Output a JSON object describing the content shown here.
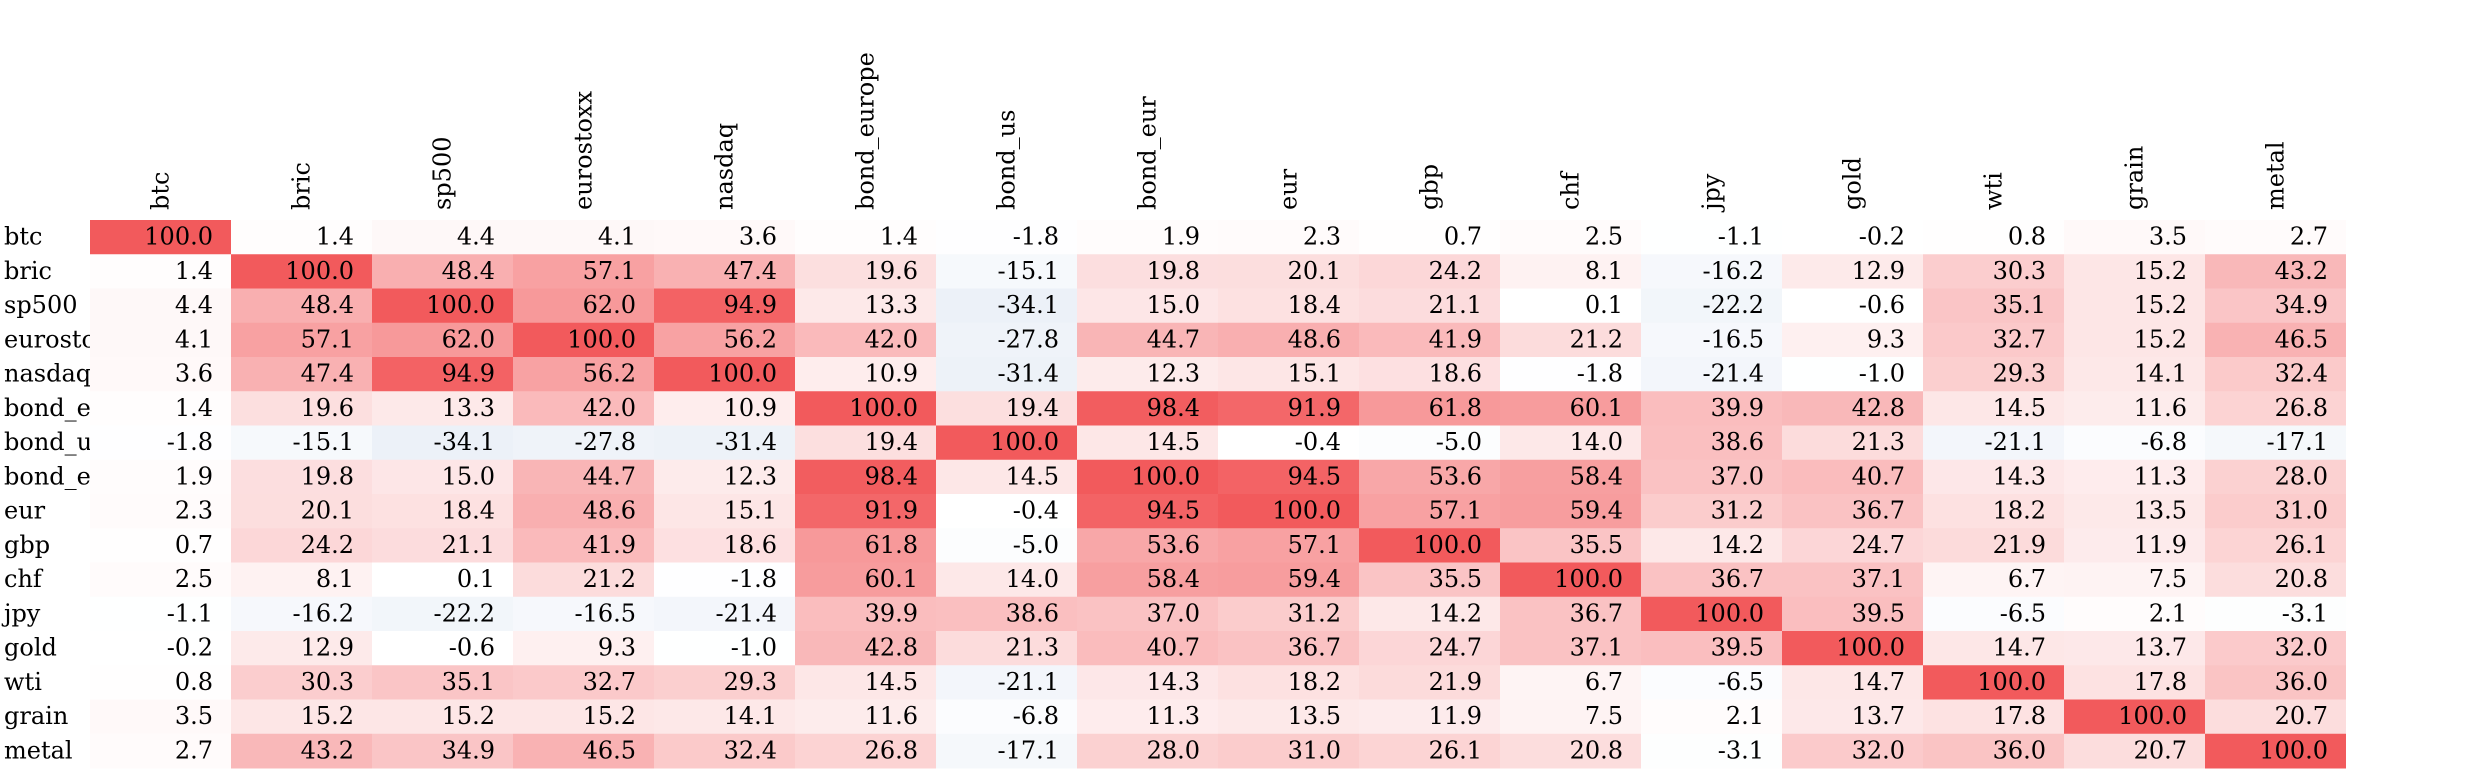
{
  "chart_data": {
    "type": "heatmap",
    "title": "",
    "xlabel": "",
    "ylabel": "",
    "labels": [
      "btc",
      "bric",
      "sp500",
      "eurostoxx",
      "nasdaq",
      "bond_europe",
      "bond_us",
      "bond_eur",
      "eur",
      "gbp",
      "chf",
      "jpy",
      "gold",
      "wti",
      "grain",
      "metal"
    ],
    "values": [
      [
        100.0,
        1.4,
        4.4,
        4.1,
        3.6,
        1.4,
        -1.8,
        1.9,
        2.3,
        0.7,
        2.5,
        -1.1,
        -0.2,
        0.8,
        3.5,
        2.7
      ],
      [
        1.4,
        100.0,
        48.4,
        57.1,
        47.4,
        19.6,
        -15.1,
        19.8,
        20.1,
        24.2,
        8.1,
        -16.2,
        12.9,
        30.3,
        15.2,
        43.2
      ],
      [
        4.4,
        48.4,
        100.0,
        62.0,
        94.9,
        13.3,
        -34.1,
        15.0,
        18.4,
        21.1,
        0.1,
        -22.2,
        -0.6,
        35.1,
        15.2,
        34.9
      ],
      [
        4.1,
        57.1,
        62.0,
        100.0,
        56.2,
        42.0,
        -27.8,
        44.7,
        48.6,
        41.9,
        21.2,
        -16.5,
        9.3,
        32.7,
        15.2,
        46.5
      ],
      [
        3.6,
        47.4,
        94.9,
        56.2,
        100.0,
        10.9,
        -31.4,
        12.3,
        15.1,
        18.6,
        -1.8,
        -21.4,
        -1.0,
        29.3,
        14.1,
        32.4
      ],
      [
        1.4,
        19.6,
        13.3,
        42.0,
        10.9,
        100.0,
        19.4,
        98.4,
        91.9,
        61.8,
        60.1,
        39.9,
        42.8,
        14.5,
        11.6,
        26.8
      ],
      [
        -1.8,
        -15.1,
        -34.1,
        -27.8,
        -31.4,
        19.4,
        100.0,
        14.5,
        -0.4,
        -5.0,
        14.0,
        38.6,
        21.3,
        -21.1,
        -6.8,
        -17.1
      ],
      [
        1.9,
        19.8,
        15.0,
        44.7,
        12.3,
        98.4,
        14.5,
        100.0,
        94.5,
        53.6,
        58.4,
        37.0,
        40.7,
        14.3,
        11.3,
        28.0
      ],
      [
        2.3,
        20.1,
        18.4,
        48.6,
        15.1,
        91.9,
        -0.4,
        94.5,
        100.0,
        57.1,
        59.4,
        31.2,
        36.7,
        18.2,
        13.5,
        31.0
      ],
      [
        0.7,
        24.2,
        21.1,
        41.9,
        18.6,
        61.8,
        -5.0,
        53.6,
        57.1,
        100.0,
        35.5,
        14.2,
        24.7,
        21.9,
        11.9,
        26.1
      ],
      [
        2.5,
        8.1,
        0.1,
        21.2,
        -1.8,
        60.1,
        14.0,
        58.4,
        59.4,
        35.5,
        100.0,
        36.7,
        37.1,
        6.7,
        7.5,
        20.8
      ],
      [
        -1.1,
        -16.2,
        -22.2,
        -16.5,
        -21.4,
        39.9,
        38.6,
        37.0,
        31.2,
        14.2,
        36.7,
        100.0,
        39.5,
        -6.5,
        2.1,
        -3.1
      ],
      [
        -0.2,
        12.9,
        -0.6,
        9.3,
        -1.0,
        42.8,
        21.3,
        40.7,
        36.7,
        24.7,
        37.1,
        39.5,
        100.0,
        14.7,
        13.7,
        32.0
      ],
      [
        0.8,
        30.3,
        35.1,
        32.7,
        29.3,
        14.5,
        -21.1,
        14.3,
        18.2,
        21.9,
        6.7,
        -6.5,
        14.7,
        100.0,
        17.8,
        36.0
      ],
      [
        3.5,
        15.2,
        15.2,
        15.2,
        14.1,
        11.6,
        -6.8,
        11.3,
        13.5,
        11.9,
        7.5,
        2.1,
        13.7,
        17.8,
        100.0,
        20.7
      ],
      [
        2.7,
        43.2,
        34.9,
        46.5,
        32.4,
        26.8,
        -17.1,
        28.0,
        31.0,
        26.1,
        20.8,
        -3.1,
        32.0,
        36.0,
        20.7,
        100.0
      ]
    ],
    "value_format": "0.0",
    "color_scale": {
      "negative": "#c6d5ea",
      "zero": "#ffffff",
      "positive": "#f25a5c",
      "range": [
        -100,
        100
      ]
    },
    "legend": "none",
    "grid": false
  }
}
